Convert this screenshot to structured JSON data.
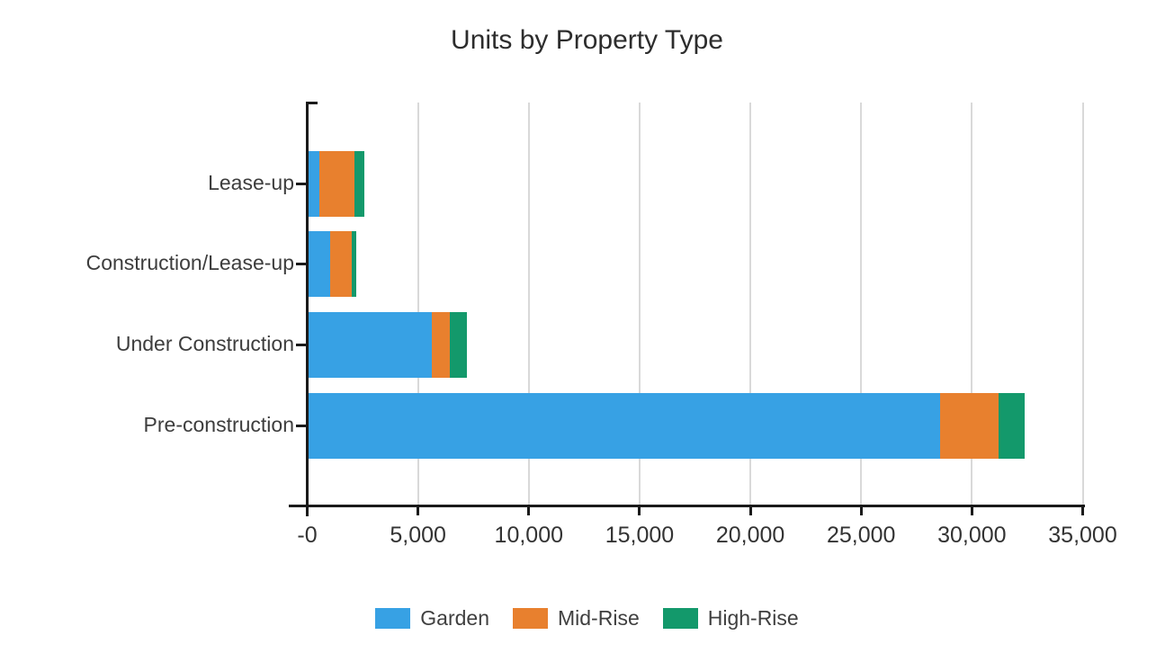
{
  "title": "Units by Property Type",
  "chart_data": {
    "type": "bar",
    "orientation": "horizontal",
    "stacked": true,
    "title": "Units by Property Type",
    "categories": [
      "Lease-up",
      "Construction/Lease-up",
      "Under Construction",
      "Pre-construction"
    ],
    "series": [
      {
        "name": "Garden",
        "color": "#37a1e4",
        "values": [
          500,
          1000,
          5580,
          28540
        ]
      },
      {
        "name": "Mid-Rise",
        "color": "#e8802e",
        "values": [
          1590,
          970,
          810,
          2640
        ]
      },
      {
        "name": "High-Rise",
        "color": "#13996b",
        "values": [
          450,
          200,
          770,
          1180
        ]
      }
    ],
    "category_totals": [
      2540,
      2170,
      7160,
      32360
    ],
    "xlim": [
      0,
      35000
    ],
    "x_tick_values": [
      0,
      5000,
      10000,
      15000,
      20000,
      25000,
      30000,
      35000
    ],
    "x_tick_labels": [
      "-0",
      "5,000",
      "10,000",
      "15,000",
      "20,000",
      "25,000",
      "30,000",
      "35,000"
    ],
    "xlabel": "",
    "ylabel": "",
    "grid": true,
    "legend_position": "bottom",
    "colors": {
      "axis": "#1a1a1a",
      "grid": "#d9d9d9",
      "text": "#3d3d3d",
      "background": "#ffffff"
    }
  }
}
